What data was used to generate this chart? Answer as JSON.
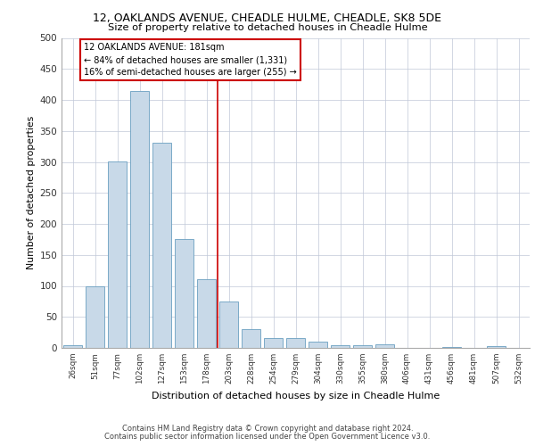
{
  "title1": "12, OAKLANDS AVENUE, CHEADLE HULME, CHEADLE, SK8 5DE",
  "title2": "Size of property relative to detached houses in Cheadle Hulme",
  "xlabel": "Distribution of detached houses by size in Cheadle Hulme",
  "ylabel": "Number of detached properties",
  "categories": [
    "26sqm",
    "51sqm",
    "77sqm",
    "102sqm",
    "127sqm",
    "153sqm",
    "178sqm",
    "203sqm",
    "228sqm",
    "254sqm",
    "279sqm",
    "304sqm",
    "330sqm",
    "355sqm",
    "380sqm",
    "406sqm",
    "431sqm",
    "456sqm",
    "481sqm",
    "507sqm",
    "532sqm"
  ],
  "values": [
    4,
    99,
    301,
    414,
    331,
    176,
    111,
    75,
    30,
    16,
    16,
    10,
    4,
    4,
    6,
    0,
    0,
    1,
    0,
    3,
    0
  ],
  "bar_color": "#c8d9e8",
  "bar_edge_color": "#6a9fc0",
  "vline_index": 6.5,
  "annotation_line1": "12 OAKLANDS AVENUE: 181sqm",
  "annotation_line2": "← 84% of detached houses are smaller (1,331)",
  "annotation_line3": "16% of semi-detached houses are larger (255) →",
  "vline_color": "#cc0000",
  "box_edge_color": "#cc0000",
  "ylim": [
    0,
    500
  ],
  "yticks": [
    0,
    50,
    100,
    150,
    200,
    250,
    300,
    350,
    400,
    450,
    500
  ],
  "footer1": "Contains HM Land Registry data © Crown copyright and database right 2024.",
  "footer2": "Contains public sector information licensed under the Open Government Licence v3.0.",
  "bg_color": "#ffffff",
  "grid_color": "#c0c8d8"
}
